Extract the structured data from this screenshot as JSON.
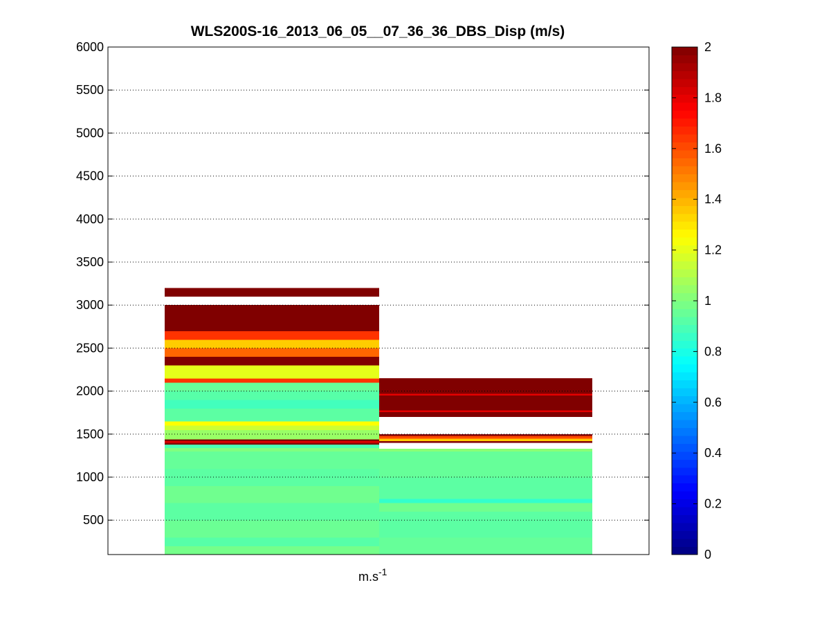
{
  "chart_data": {
    "type": "heatmap",
    "title": "WLS200S-16_2013_06_05__07_36_36_DBS_Disp (m/s)",
    "xlabel": "m.s",
    "xlabel_superscript": "-1",
    "ylim": [
      100,
      6000
    ],
    "yticks": [
      "500",
      "1000",
      "1500",
      "2000",
      "2500",
      "3000",
      "3500",
      "4000",
      "4500",
      "5000",
      "5500",
      "6000"
    ],
    "grid": true,
    "colormap": "jet",
    "clim": [
      0,
      2
    ],
    "colorbar_ticks": [
      "0",
      "0.2",
      "0.4",
      "0.6",
      "0.8",
      "1",
      "1.2",
      "1.4",
      "1.6",
      "1.8",
      "2"
    ],
    "columns": [
      {
        "segments": [
          {
            "y0": 100,
            "y1": 200,
            "value": 0.98
          },
          {
            "y0": 200,
            "y1": 300,
            "value": 0.92
          },
          {
            "y0": 300,
            "y1": 500,
            "value": 0.96
          },
          {
            "y0": 500,
            "y1": 700,
            "value": 0.93
          },
          {
            "y0": 700,
            "y1": 900,
            "value": 0.97
          },
          {
            "y0": 900,
            "y1": 1100,
            "value": 0.93
          },
          {
            "y0": 1100,
            "y1": 1300,
            "value": 0.95
          },
          {
            "y0": 1300,
            "y1": 1340,
            "value": 1.0
          },
          {
            "y0": 1340,
            "y1": 1380,
            "value": 0.9
          },
          {
            "y0": 1380,
            "y1": 1400,
            "value": 2.0
          },
          {
            "y0": 1400,
            "y1": 1420,
            "value": 1.8
          },
          {
            "y0": 1420,
            "y1": 1440,
            "value": 2.0
          },
          {
            "y0": 1440,
            "y1": 1550,
            "value": 1.05
          },
          {
            "y0": 1550,
            "y1": 1600,
            "value": 1.15
          },
          {
            "y0": 1600,
            "y1": 1650,
            "value": 1.25
          },
          {
            "y0": 1650,
            "y1": 1800,
            "value": 0.93
          },
          {
            "y0": 1800,
            "y1": 1900,
            "value": 0.88
          },
          {
            "y0": 1900,
            "y1": 2000,
            "value": 0.92
          },
          {
            "y0": 2000,
            "y1": 2100,
            "value": 0.95
          },
          {
            "y0": 2100,
            "y1": 2150,
            "value": 1.65
          },
          {
            "y0": 2150,
            "y1": 2300,
            "value": 1.2
          },
          {
            "y0": 2300,
            "y1": 2400,
            "value": 2.0
          },
          {
            "y0": 2400,
            "y1": 2500,
            "value": 1.55
          },
          {
            "y0": 2500,
            "y1": 2600,
            "value": 1.35
          },
          {
            "y0": 2600,
            "y1": 2700,
            "value": 1.65
          },
          {
            "y0": 2700,
            "y1": 3000,
            "value": 2.0
          },
          {
            "y0": 3100,
            "y1": 3200,
            "value": 2.0
          }
        ]
      },
      {
        "segments": [
          {
            "y0": 100,
            "y1": 300,
            "value": 0.95
          },
          {
            "y0": 300,
            "y1": 600,
            "value": 0.93
          },
          {
            "y0": 600,
            "y1": 700,
            "value": 0.97
          },
          {
            "y0": 700,
            "y1": 750,
            "value": 0.85
          },
          {
            "y0": 750,
            "y1": 1000,
            "value": 0.93
          },
          {
            "y0": 1000,
            "y1": 1300,
            "value": 0.95
          },
          {
            "y0": 1300,
            "y1": 1330,
            "value": 1.02
          },
          {
            "y0": 1400,
            "y1": 1420,
            "value": 2.0
          },
          {
            "y0": 1420,
            "y1": 1450,
            "value": 1.35
          },
          {
            "y0": 1450,
            "y1": 1480,
            "value": 1.6
          },
          {
            "y0": 1480,
            "y1": 1500,
            "value": 2.0
          },
          {
            "y0": 1700,
            "y1": 1760,
            "value": 2.0
          },
          {
            "y0": 1760,
            "y1": 1780,
            "value": 1.8
          },
          {
            "y0": 1780,
            "y1": 1950,
            "value": 2.0
          },
          {
            "y0": 1950,
            "y1": 1970,
            "value": 1.8
          },
          {
            "y0": 1970,
            "y1": 2150,
            "value": 2.0
          }
        ]
      }
    ]
  }
}
